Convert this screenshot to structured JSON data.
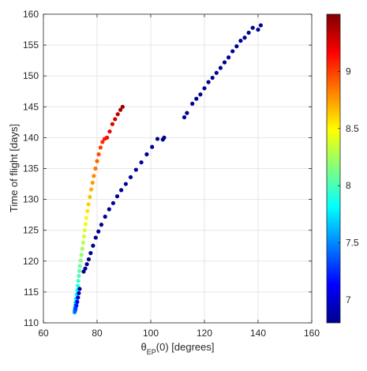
{
  "chart_data": {
    "type": "scatter",
    "xlabel_main": "θ",
    "xlabel_sub": "EP",
    "xlabel_rest": "(0) [degrees]",
    "ylabel": "Time of flight [days]",
    "xlim": [
      60,
      160
    ],
    "ylim": [
      110,
      160
    ],
    "x_ticks": [
      "60",
      "80",
      "100",
      "120",
      "140",
      "160"
    ],
    "y_ticks": [
      "110",
      "115",
      "120",
      "125",
      "130",
      "135",
      "140",
      "145",
      "150",
      "155",
      "160"
    ],
    "grid": true,
    "colorbar": {
      "colormap": "jet",
      "range": [
        6.8,
        9.5
      ],
      "ticks": [
        "7",
        "7.5",
        "8",
        "8.5",
        "9"
      ]
    },
    "series": [
      {
        "points": [
          [
            71.6,
            111.7,
            7.6
          ],
          [
            71.7,
            112.1,
            7.6
          ],
          [
            71.8,
            112.5,
            7.65
          ],
          [
            71.9,
            112.9,
            7.7
          ],
          [
            72.0,
            113.3,
            7.7
          ],
          [
            72.2,
            113.9,
            7.75
          ],
          [
            72.4,
            114.6,
            7.8
          ],
          [
            72.6,
            115.3,
            7.85
          ],
          [
            72.8,
            116.0,
            7.9
          ],
          [
            73.0,
            116.8,
            7.95
          ],
          [
            73.2,
            117.6,
            8.0
          ],
          [
            73.4,
            118.4,
            8.05
          ],
          [
            73.6,
            119.2,
            8.1
          ],
          [
            73.9,
            120.1,
            8.15
          ],
          [
            74.2,
            121.0,
            8.2
          ],
          [
            74.5,
            122.0,
            8.25
          ],
          [
            74.8,
            123.0,
            8.3
          ],
          [
            75.1,
            124.0,
            8.35
          ],
          [
            75.4,
            125.0,
            8.4
          ],
          [
            75.7,
            126.0,
            8.45
          ],
          [
            76.0,
            127.0,
            8.5
          ],
          [
            76.4,
            128.1,
            8.55
          ],
          [
            76.8,
            129.2,
            8.6
          ],
          [
            77.3,
            130.4,
            8.65
          ],
          [
            77.8,
            131.6,
            8.7
          ],
          [
            78.3,
            132.7,
            8.75
          ],
          [
            78.8,
            133.8,
            8.8
          ],
          [
            79.4,
            135.0,
            8.85
          ],
          [
            80.0,
            136.2,
            8.9
          ],
          [
            80.6,
            137.3,
            8.95
          ],
          [
            81.3,
            138.4,
            9.0
          ],
          [
            82.0,
            139.3,
            9.05
          ],
          [
            82.8,
            139.8,
            9.1
          ],
          [
            83.7,
            140.0,
            9.15
          ],
          [
            84.7,
            141.0,
            9.2
          ],
          [
            85.7,
            142.2,
            9.25
          ],
          [
            86.7,
            143.0,
            9.3
          ],
          [
            87.7,
            143.8,
            9.35
          ],
          [
            88.7,
            144.5,
            9.4
          ],
          [
            89.5,
            145.0,
            9.45
          ]
        ]
      },
      {
        "points": [
          [
            71.8,
            111.9,
            7.4
          ],
          [
            72.0,
            112.3,
            7.3
          ],
          [
            72.3,
            112.8,
            7.2
          ],
          [
            72.6,
            113.4,
            7.1
          ],
          [
            72.9,
            114.1,
            7.0
          ],
          [
            73.2,
            114.8,
            6.95
          ],
          [
            73.5,
            115.5,
            6.9
          ],
          [
            75.0,
            118.3,
            6.85
          ],
          [
            75.6,
            118.8,
            6.85
          ],
          [
            76.2,
            119.5,
            6.85
          ],
          [
            76.9,
            120.3,
            6.85
          ],
          [
            77.6,
            121.3,
            6.85
          ],
          [
            78.5,
            122.5,
            6.85
          ],
          [
            79.5,
            123.8,
            6.85
          ],
          [
            80.5,
            124.8,
            6.85
          ],
          [
            81.6,
            125.9,
            6.85
          ],
          [
            83.0,
            127.2,
            6.85
          ],
          [
            84.5,
            128.4,
            6.85
          ],
          [
            86.0,
            129.4,
            6.85
          ],
          [
            87.5,
            130.5,
            6.85
          ],
          [
            89.0,
            131.5,
            6.85
          ],
          [
            90.7,
            132.5,
            6.85
          ],
          [
            92.5,
            133.6,
            6.85
          ],
          [
            94.5,
            134.8,
            6.85
          ],
          [
            96.5,
            136.0,
            6.85
          ],
          [
            98.5,
            137.3,
            6.85
          ],
          [
            100.5,
            138.5,
            6.85
          ],
          [
            102.5,
            139.8,
            6.85
          ],
          [
            104.5,
            139.7,
            6.85
          ],
          [
            105.0,
            140.0,
            6.85
          ],
          [
            112.5,
            143.3,
            6.85
          ],
          [
            113.5,
            144.0,
            6.85
          ],
          [
            115.5,
            145.5,
            6.85
          ],
          [
            117.0,
            146.3,
            6.85
          ],
          [
            118.5,
            147.0,
            6.85
          ],
          [
            120.0,
            148.0,
            6.85
          ],
          [
            121.5,
            149.0,
            6.85
          ],
          [
            123.0,
            149.7,
            6.85
          ],
          [
            124.5,
            150.5,
            6.85
          ],
          [
            126.0,
            151.3,
            6.85
          ],
          [
            127.5,
            152.2,
            6.85
          ],
          [
            129.0,
            153.0,
            6.85
          ],
          [
            130.5,
            154.0,
            6.85
          ],
          [
            132.0,
            154.8,
            6.85
          ],
          [
            133.5,
            155.7,
            6.85
          ],
          [
            135.0,
            156.2,
            6.85
          ],
          [
            136.5,
            157.0,
            6.85
          ],
          [
            138.0,
            157.8,
            6.85
          ],
          [
            140.0,
            157.5,
            6.85
          ],
          [
            141.0,
            158.2,
            6.85
          ]
        ]
      }
    ]
  }
}
